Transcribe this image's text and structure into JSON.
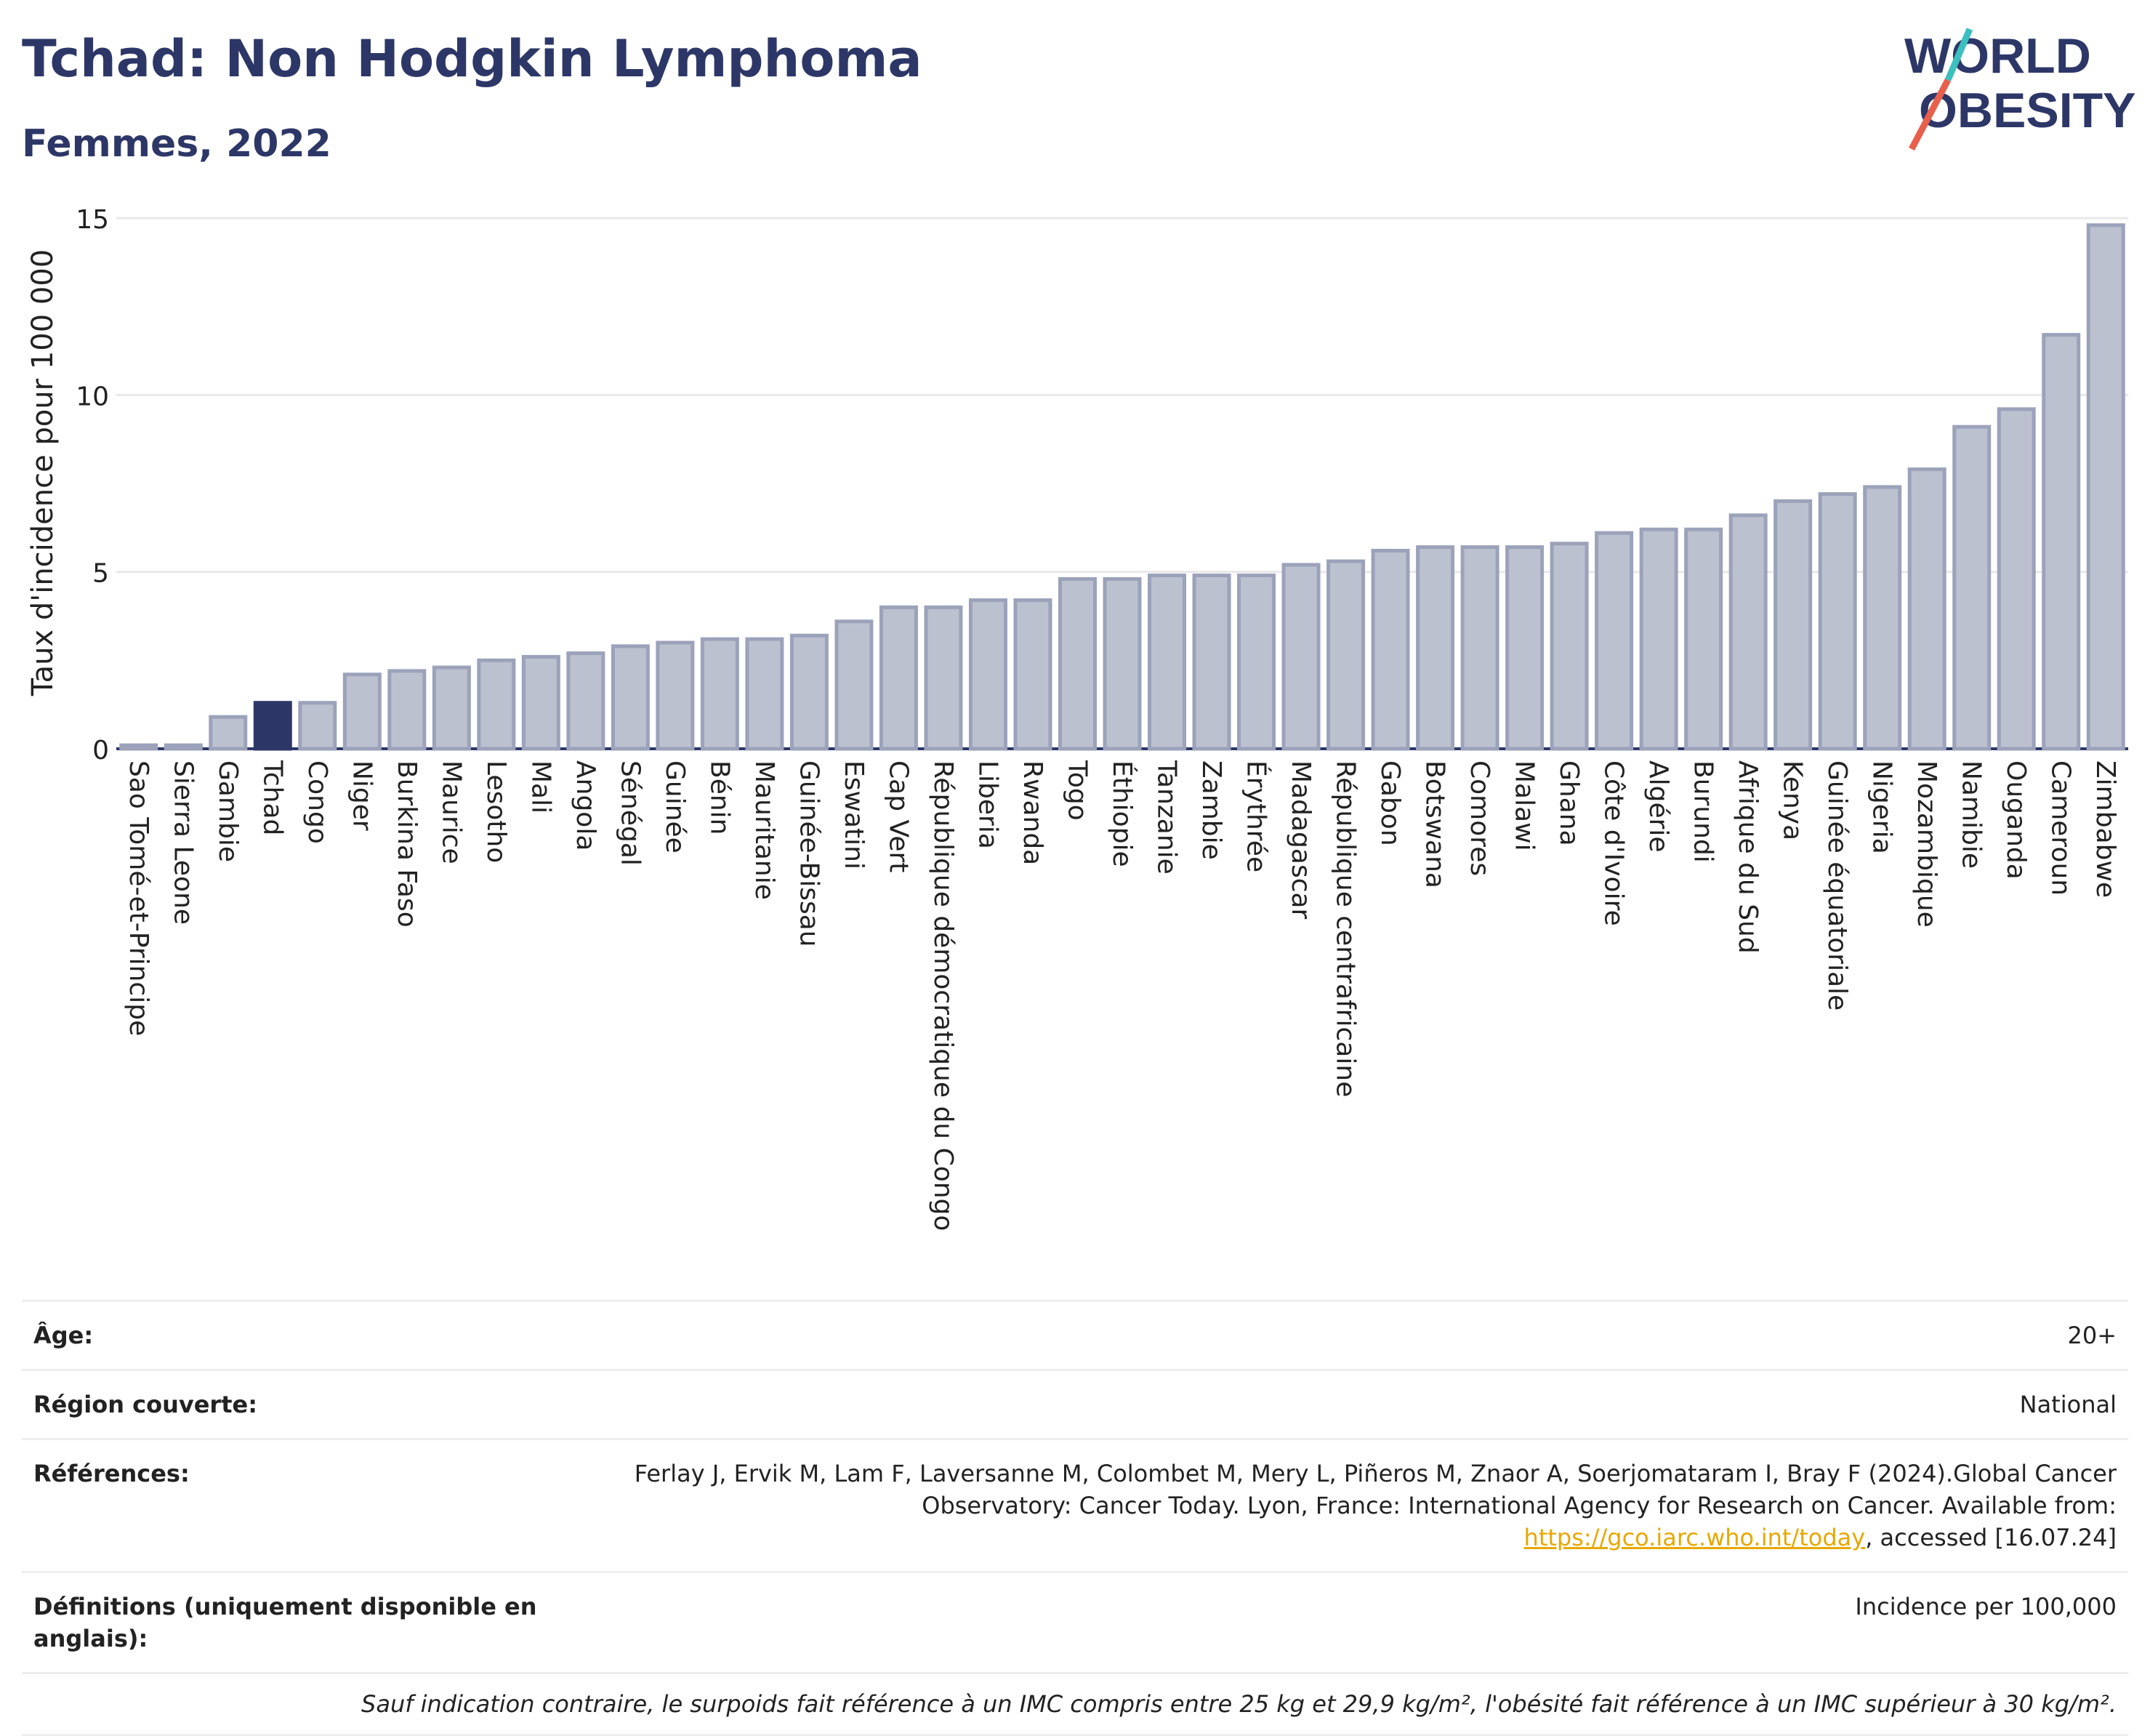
{
  "header": {
    "title": "Tchad: Non Hodgkin Lymphoma",
    "subtitle": "Femmes, 2022"
  },
  "logo": {
    "line1": "WORLD",
    "line2": "OBESITY",
    "colors": {
      "text": "#2d3767",
      "slash_red": "#e8604c",
      "slash_teal": "#3bbfbf"
    }
  },
  "chart_data": {
    "type": "bar",
    "ylabel": "Taux d'incidence pour 100 000",
    "xlabel": "",
    "ylim": [
      0,
      15
    ],
    "yticks": [
      0,
      5,
      10,
      15
    ],
    "grid": true,
    "highlight": "Tchad",
    "colors": {
      "bar": "#bcc1cf",
      "bar_border": "#9ba2ba",
      "highlight": "#2d3767",
      "grid": "#e8e8e8",
      "axis": "#2d3767"
    },
    "categories": [
      "Sao Tomé-et-Principe",
      "Sierra Leone",
      "Gambie",
      "Tchad",
      "Congo",
      "Niger",
      "Burkina Faso",
      "Maurice",
      "Lesotho",
      "Mali",
      "Angola",
      "Sénégal",
      "Guinée",
      "Bénin",
      "Mauritanie",
      "Guinée-Bissau",
      "Eswatini",
      "Cap Vert",
      "République démocratique du Congo",
      "Liberia",
      "Rwanda",
      "Togo",
      "Éthiopie",
      "Tanzanie",
      "Zambie",
      "Érythrée",
      "Madagascar",
      "République centrafricaine",
      "Gabon",
      "Botswana",
      "Comores",
      "Malawi",
      "Ghana",
      "Côte d'Ivoire",
      "Algérie",
      "Burundi",
      "Afrique du Sud",
      "Kenya",
      "Guinée équatoriale",
      "Nigeria",
      "Mozambique",
      "Namibie",
      "Ouganda",
      "Cameroun",
      "Zimbabwe"
    ],
    "values": [
      0.1,
      0.1,
      0.9,
      1.3,
      1.3,
      2.1,
      2.2,
      2.3,
      2.5,
      2.6,
      2.7,
      2.9,
      3.0,
      3.1,
      3.1,
      3.2,
      3.6,
      4.0,
      4.0,
      4.2,
      4.2,
      4.8,
      4.8,
      4.9,
      4.9,
      4.9,
      5.2,
      5.3,
      5.6,
      5.7,
      5.7,
      5.7,
      5.8,
      6.1,
      6.2,
      6.2,
      6.6,
      7.0,
      7.2,
      7.4,
      7.9,
      9.1,
      9.6,
      11.7,
      14.8
    ]
  },
  "meta": {
    "age_label": "Âge:",
    "age_value": "20+",
    "region_label": "Région couverte:",
    "region_value": "National",
    "refs_label": "Références:",
    "refs_text_before": "Ferlay J, Ervik M, Lam F, Laversanne M, Colombet M, Mery L, Piñeros M, Znaor A, Soerjomataram I, Bray F (2024).Global Cancer Observatory: Cancer Today. Lyon, France: International Agency for Research on Cancer. Available from: ",
    "refs_link": "https://gco.iarc.who.int/today",
    "refs_text_after": ", accessed [16.07.24]",
    "defs_label": "Définitions (uniquement disponible en anglais):",
    "defs_value": "Incidence per 100,000",
    "note": "Sauf indication contraire, le surpoids fait référence à un IMC compris entre 25 kg et 29,9 kg/m², l'obésité fait référence à un IMC supérieur à 30 kg/m²."
  }
}
